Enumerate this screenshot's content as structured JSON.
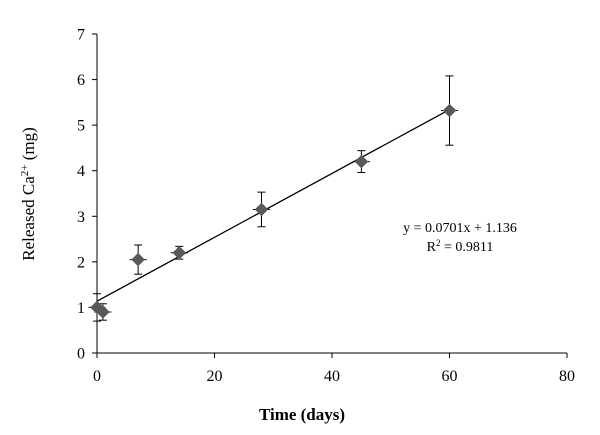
{
  "chart_data": {
    "type": "scatter",
    "title": "",
    "xlabel": "Time (days)",
    "ylabel": {
      "prefix": "Released Ca",
      "sup": "2+",
      "suffix": " (mg)"
    },
    "xlim": [
      0,
      80
    ],
    "ylim": [
      0,
      7
    ],
    "x_ticks": [
      0,
      20,
      40,
      60,
      80
    ],
    "y_ticks": [
      0,
      1,
      2,
      3,
      4,
      5,
      6,
      7
    ],
    "grid": false,
    "legend": "none",
    "marker": "diamond",
    "marker_color": "#595959",
    "series": [
      {
        "points": [
          {
            "x": 0,
            "y": 1.0,
            "yerr": 0.3
          },
          {
            "x": 1,
            "y": 0.9,
            "yerr": 0.18
          },
          {
            "x": 7,
            "y": 2.05,
            "yerr": 0.32
          },
          {
            "x": 14,
            "y": 2.2,
            "yerr": 0.14
          },
          {
            "x": 28,
            "y": 3.15,
            "yerr": 0.38
          },
          {
            "x": 45,
            "y": 4.2,
            "yerr": 0.24
          },
          {
            "x": 60,
            "y": 5.32,
            "yerr": 0.76
          }
        ]
      }
    ],
    "trendline": {
      "slope": 0.0701,
      "intercept": 1.136,
      "x_start": 0,
      "x_end": 60,
      "color": "#000000"
    },
    "annotation": {
      "equation": "y = 0.0701x + 1.136",
      "r2_prefix": "R",
      "r2_sup": "2",
      "r2_value": " = 0.9811"
    }
  }
}
